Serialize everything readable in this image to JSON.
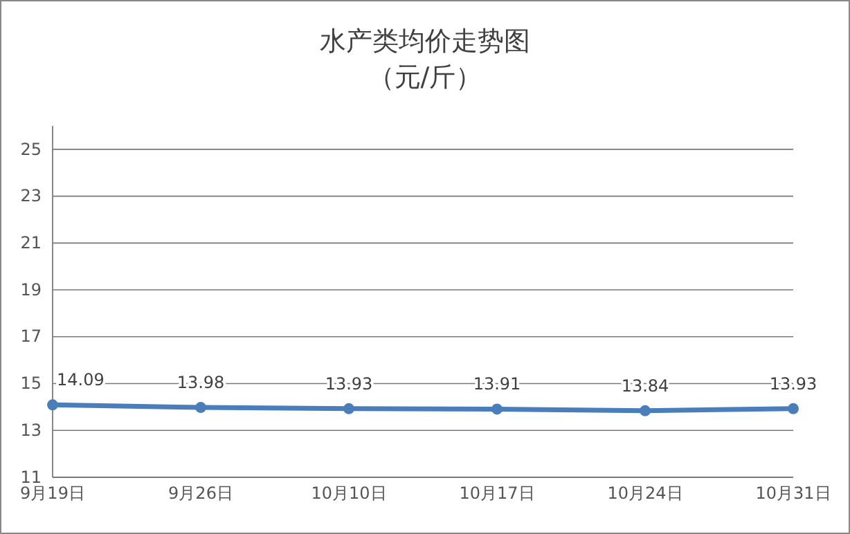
{
  "chart_data": {
    "type": "line",
    "title": "水产类均价走势图",
    "subtitle": "（元/斤）",
    "categories": [
      "9月19日",
      "9月26日",
      "10月10日",
      "10月17日",
      "10月24日",
      "10月31日"
    ],
    "series": [
      {
        "color": "#4a7ebb",
        "values": [
          14.09,
          13.98,
          13.93,
          13.91,
          13.84,
          13.93
        ]
      }
    ],
    "ylim": [
      11,
      26
    ],
    "yticks": [
      11,
      13,
      15,
      17,
      19,
      21,
      23,
      25
    ],
    "grid": "y",
    "marker": "circle",
    "line_style": "solid",
    "data_labels": true
  }
}
